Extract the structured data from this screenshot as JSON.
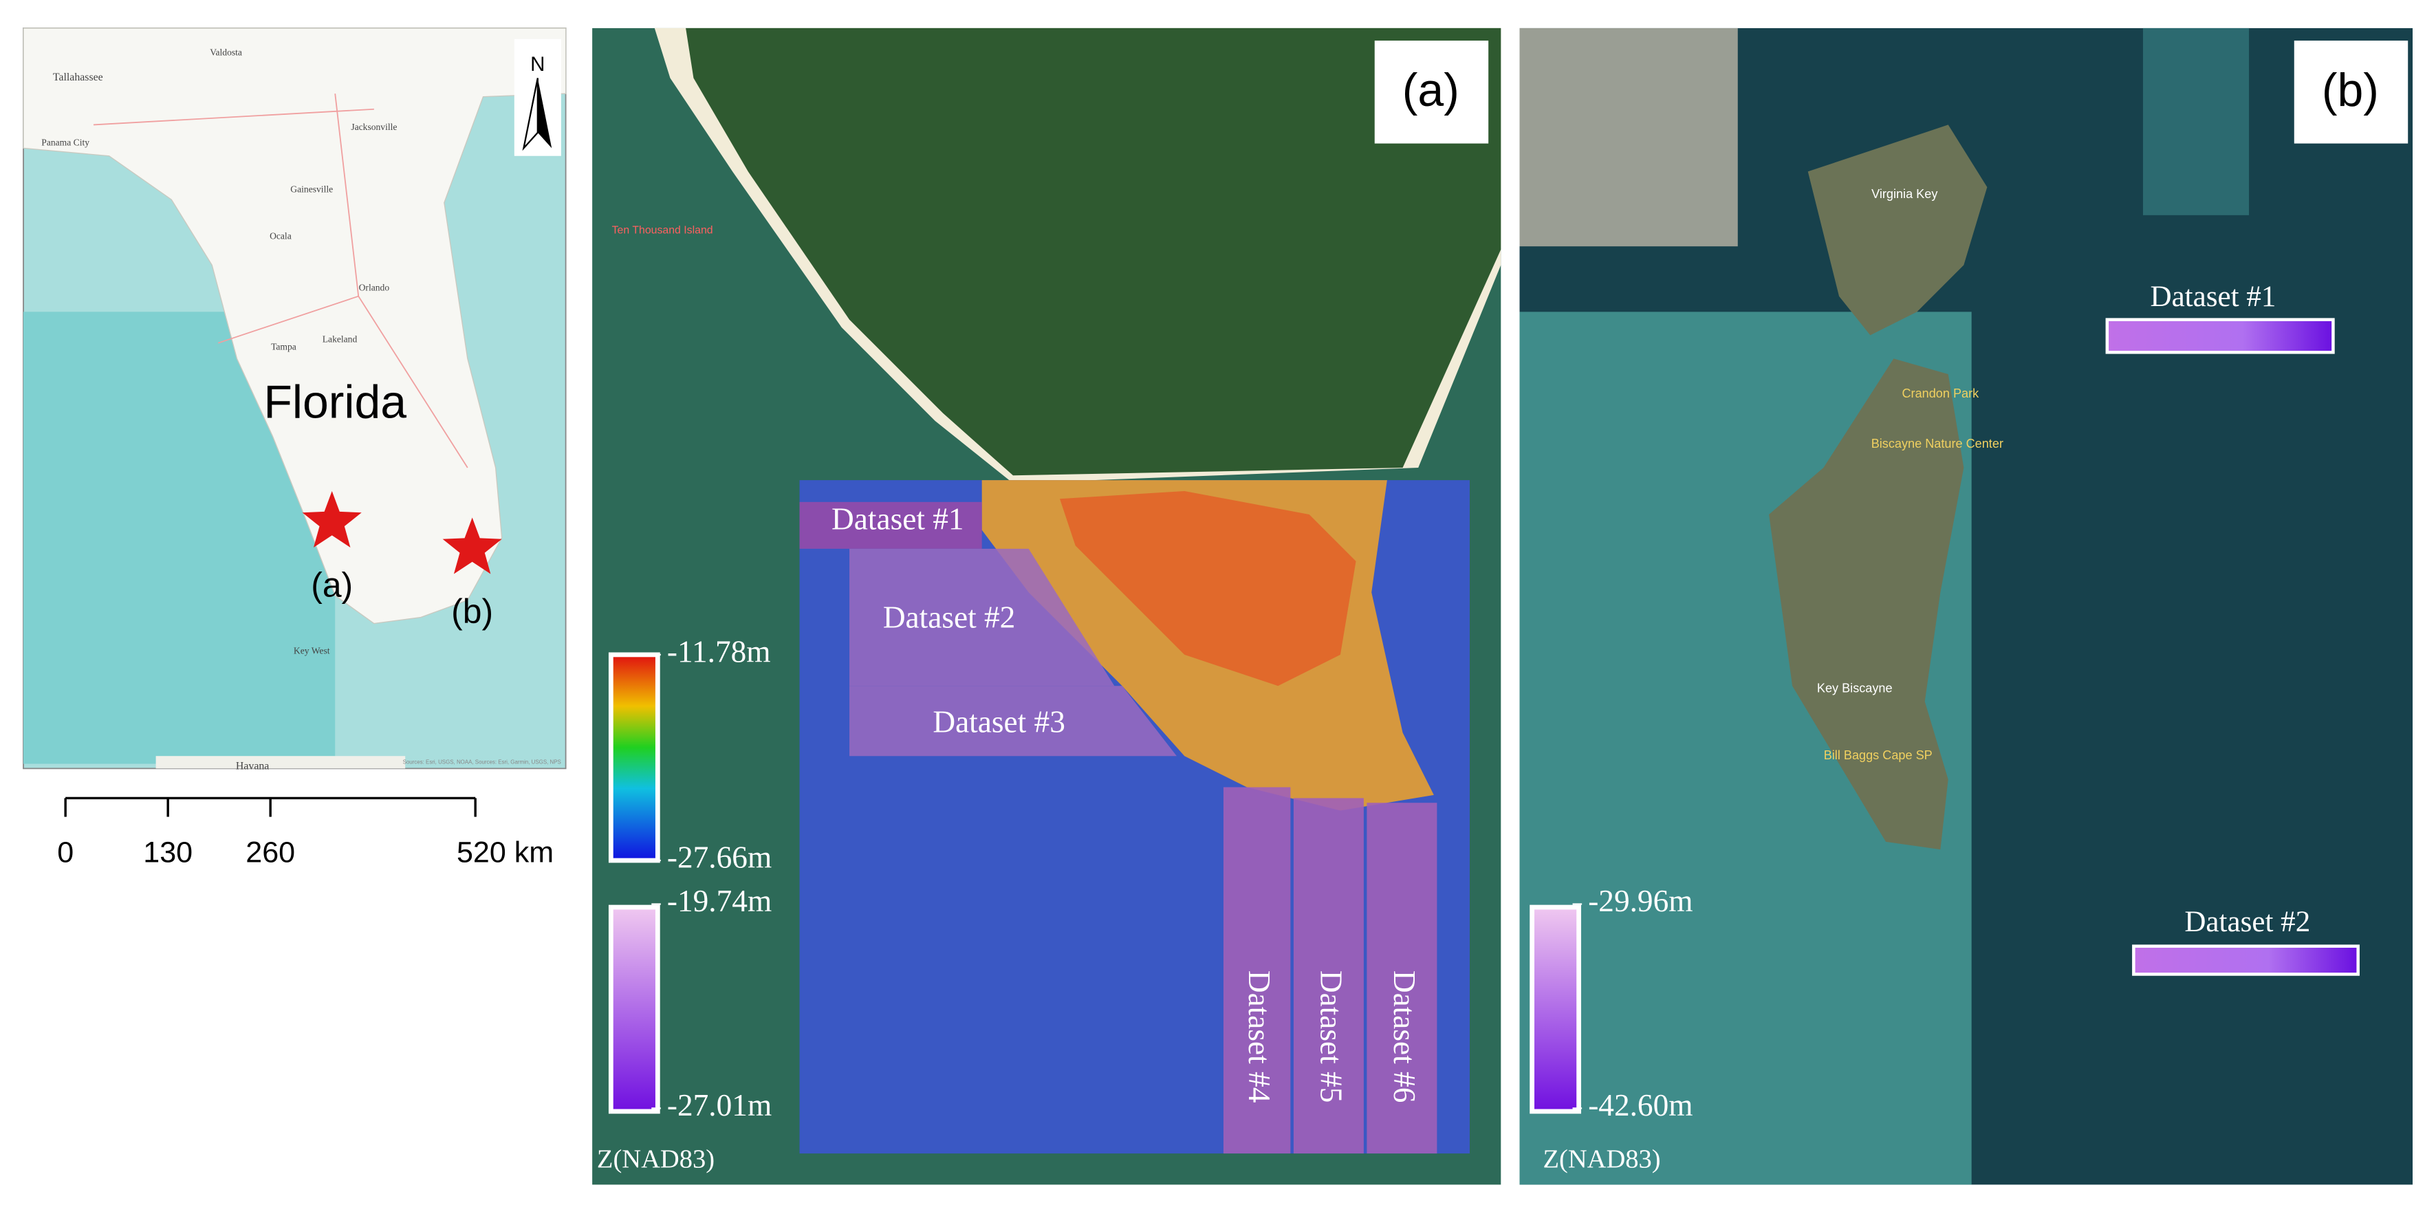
{
  "inset_map": {
    "north_label": "N",
    "state_label": "Florida",
    "site_labels": [
      "(a)",
      "(b)"
    ],
    "place_names": [
      "Tallahassee",
      "Valdosta",
      "Jacksonville",
      "Panama City",
      "Gainesville",
      "Ocala",
      "Orlando",
      "Tampa",
      "Lakeland",
      "Key West",
      "Havana"
    ],
    "attribution": "Sources: Esri, USGS, NOAA, Sources: Esri, Garmin, USGS, NPS",
    "scale_ticks": [
      0,
      130,
      260,
      {
        "value": 520,
        "label": "520 km"
      }
    ]
  },
  "panel_a": {
    "label": "(a)",
    "place_name": "Ten Thousand Island",
    "datasets": [
      "Dataset #1",
      "Dataset #2",
      "Dataset #3",
      "Dataset #4",
      "Dataset #5",
      "Dataset #6"
    ],
    "colorbars": [
      {
        "top": {
          "value": -11.78,
          "label": "-11.78m"
        },
        "bottom": {
          "value": -27.66,
          "label": "-27.66m"
        }
      },
      {
        "top": {
          "value": -19.74,
          "label": "-19.74m"
        },
        "bottom": {
          "value": -27.01,
          "label": "-27.01m"
        }
      }
    ],
    "z_label": "Z(NAD83)"
  },
  "panel_b": {
    "label": "(b)",
    "place_names": [
      "Virginia Key",
      "Key Biscayne",
      "Crandon Park",
      "Biscayne Nature Center",
      "Bill Baggs Cape SP"
    ],
    "datasets": [
      "Dataset #1",
      "Dataset #2"
    ],
    "colorbar": {
      "top": {
        "value": -29.96,
        "label": "-29.96m"
      },
      "bottom": {
        "value": -42.6,
        "label": "-42.60m"
      }
    },
    "z_label": "Z(NAD83)"
  }
}
